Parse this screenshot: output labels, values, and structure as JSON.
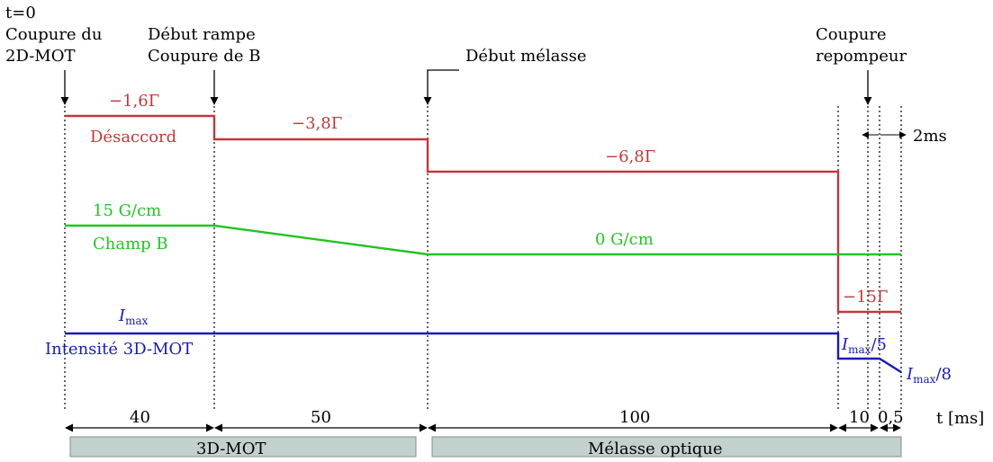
{
  "colors": {
    "detuning": "#c0393b",
    "field": "#22c322",
    "intensity": "#1a1ab4",
    "phase_box": "#c3d1cc",
    "phase_box_border": "#7f8f8a",
    "line": "#000000"
  },
  "events": {
    "t0_label": "t=0",
    "cut_2dmot_line1": "Coupure du",
    "cut_2dmot_line2": "2D-MOT",
    "ramp_line1": "Début rampe",
    "ramp_line2": "Coupure de B",
    "molasses_start": "Début mélasse",
    "repump_line1": "Coupure",
    "repump_line2": "repompeur"
  },
  "detuning": {
    "label": "Désaccord",
    "v1": "−1,6Γ",
    "v2": "−3,8Γ",
    "v3": "−6,8Γ",
    "v4": "−15Γ"
  },
  "field": {
    "label": "Champ B",
    "v_start": "15 G/cm",
    "v_end": "0 G/cm"
  },
  "intensity": {
    "label": "Intensité 3D-MOT",
    "imax_symbol": "I",
    "imax_sub": "max",
    "fifth_suffix": "/5",
    "eighth_suffix": "/8"
  },
  "small_interval": "2ms",
  "durations": {
    "d1": "40",
    "d2": "50",
    "d3": "100",
    "d4": "10",
    "d5": "0,5"
  },
  "time_axis_label": "t [ms]",
  "phases": {
    "p1": "3D-MOT",
    "p2": "Mélasse optique"
  }
}
